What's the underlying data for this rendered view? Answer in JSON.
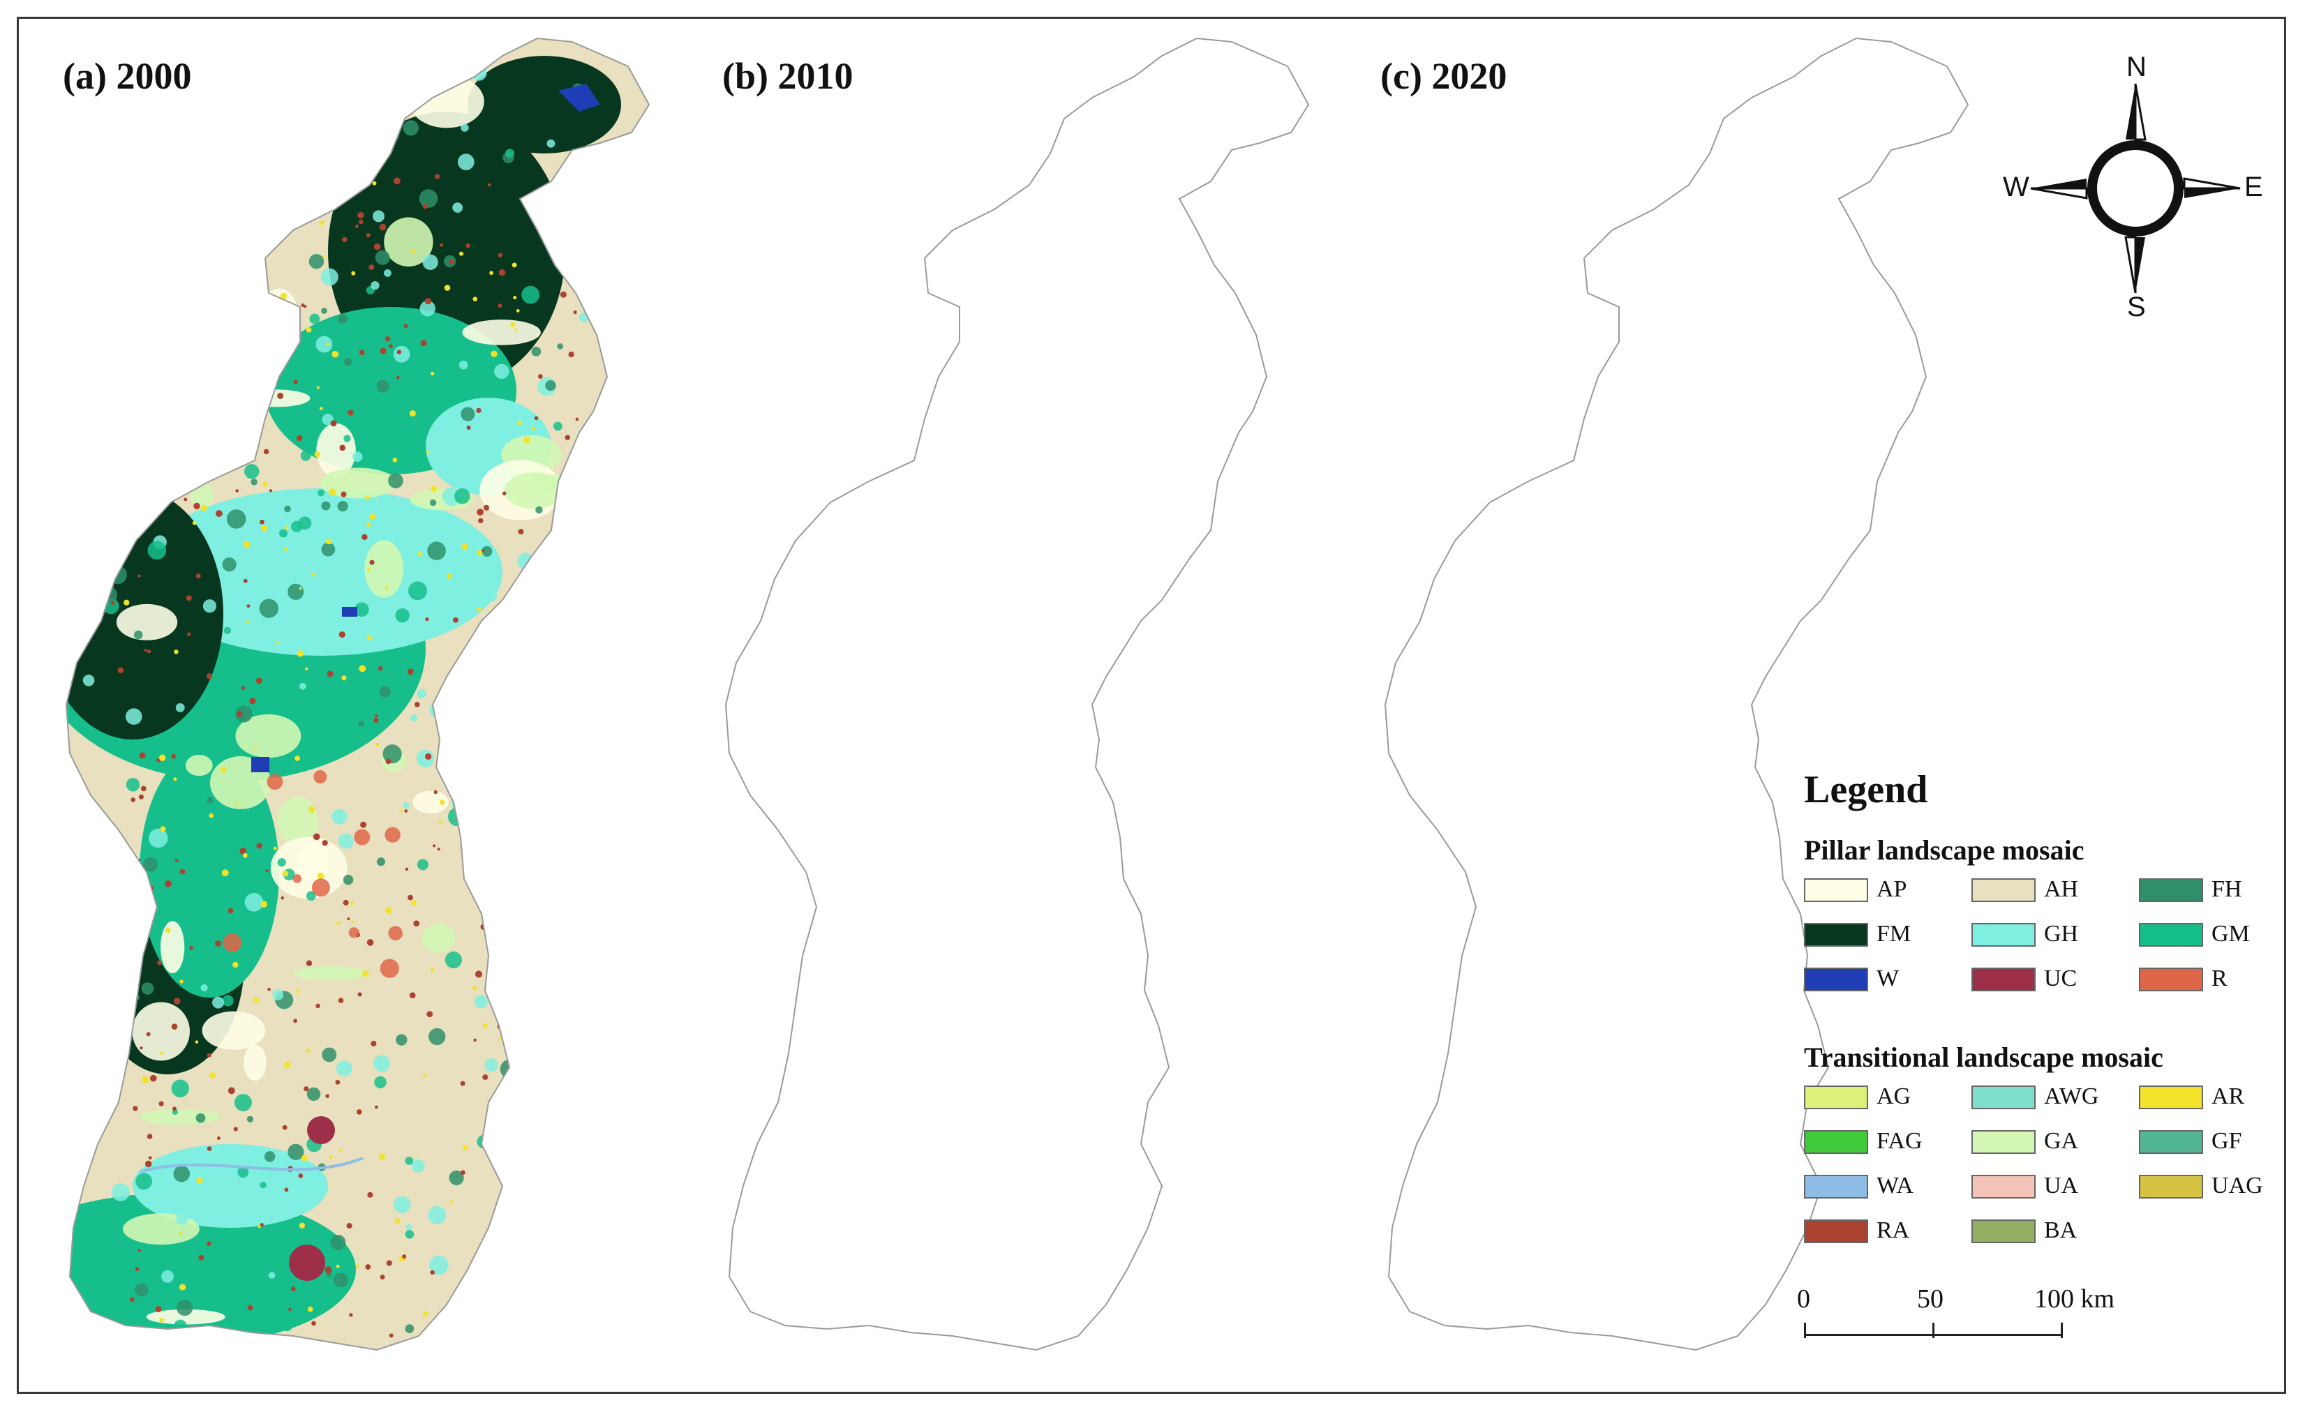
{
  "panels": [
    {
      "id": "a",
      "title": "(a) 2000"
    },
    {
      "id": "b",
      "title": "(b) 2010"
    },
    {
      "id": "c",
      "title": "(c) 2020"
    }
  ],
  "compass": {
    "north": "N",
    "south": "S",
    "east": "E",
    "west": "W"
  },
  "legend": {
    "title": "Legend",
    "pillar": {
      "heading": "Pillar landscape mosaic",
      "items": [
        {
          "code": "AP",
          "color": "#FEFEE6"
        },
        {
          "code": "AH",
          "color": "#E8E0BE"
        },
        {
          "code": "FH",
          "color": "#2F8F6A"
        },
        {
          "code": "FM",
          "color": "#08371F"
        },
        {
          "code": "GH",
          "color": "#7EEFE0"
        },
        {
          "code": "GM",
          "color": "#16BE8C"
        },
        {
          "code": "W",
          "color": "#1F3DB5"
        },
        {
          "code": "UC",
          "color": "#9E2F48"
        },
        {
          "code": "R",
          "color": "#E0664A"
        }
      ]
    },
    "transitional": {
      "heading": "Transitional landscape mosaic",
      "items": [
        {
          "code": "AG",
          "color": "#DCF07A"
        },
        {
          "code": "AWG",
          "color": "#7EDFCB"
        },
        {
          "code": "AR",
          "color": "#F3E22A"
        },
        {
          "code": "FAG",
          "color": "#3FCB3A"
        },
        {
          "code": "GA",
          "color": "#D2F7B4"
        },
        {
          "code": "GF",
          "color": "#52B595"
        },
        {
          "code": "WA",
          "color": "#8EBDE5"
        },
        {
          "code": "UA",
          "color": "#F4C4B9"
        },
        {
          "code": "UAG",
          "color": "#D8C243"
        },
        {
          "code": "RA",
          "color": "#AC4330"
        },
        {
          "code": "BA",
          "color": "#94AE62"
        }
      ]
    }
  },
  "scalebar": {
    "labels": [
      "0",
      "50",
      "100 km"
    ]
  }
}
